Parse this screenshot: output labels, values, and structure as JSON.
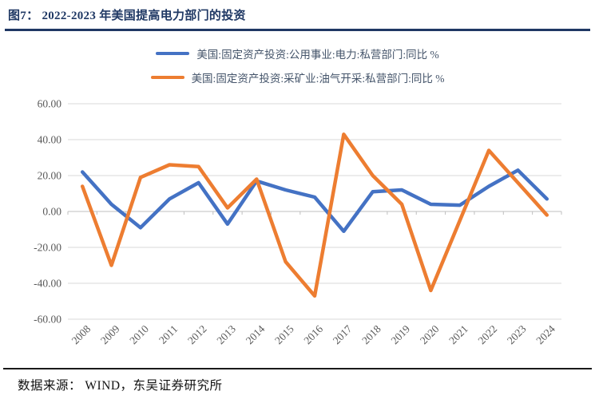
{
  "figure": {
    "title": "图7： 2022-2023 年美国提高电力部门的投资",
    "source": "数据来源： WIND，东吴证券研究所"
  },
  "chart_data": {
    "type": "line",
    "x": [
      2008,
      2009,
      2010,
      2011,
      2012,
      2013,
      2014,
      2015,
      2016,
      2017,
      2018,
      2019,
      2020,
      2021,
      2022,
      2023,
      2024
    ],
    "series": [
      {
        "name": "美国:固定资产投资:公用事业:电力:私营部门:同比 %",
        "color": "#4472C4",
        "values": [
          22,
          4,
          -9,
          7,
          16,
          -7,
          17,
          12,
          8,
          -11,
          11,
          12,
          4,
          3.5,
          14,
          23,
          7
        ]
      },
      {
        "name": "美国:固定资产投资:采矿业:油气开采:私营部门:同比 %",
        "color": "#ED7D31",
        "values": [
          14,
          -30,
          19,
          26,
          25,
          2,
          18,
          -28,
          -47,
          43,
          20,
          4,
          -44,
          -5,
          34,
          16,
          -2
        ]
      }
    ],
    "ylim": [
      -60,
      60
    ],
    "y_tick_labels": [
      "60.00",
      "40.00",
      "20.00",
      "0.00",
      "-20.00",
      "-40.00",
      "-60.00"
    ],
    "grid": true,
    "legend_position": "top",
    "x_label_rotation_deg": -45
  },
  "colors": {
    "title": "#1f3864",
    "legend_text": "#44546a",
    "axis_text": "#595959",
    "gridline": "#d9d9d9",
    "axis_line": "#bfbfbf",
    "rule_bottom": "#1a1a1a"
  }
}
